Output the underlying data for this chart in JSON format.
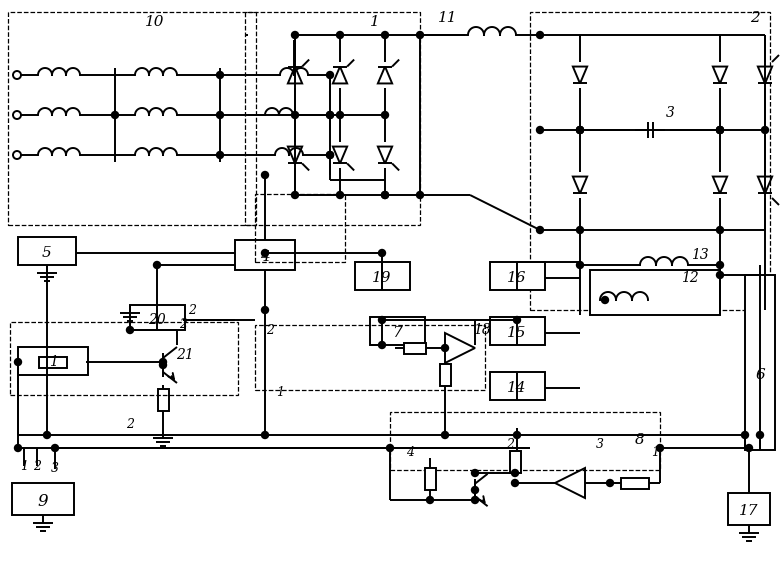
{
  "bg_color": "#ffffff",
  "line_color": "#000000",
  "lw": 1.4,
  "dlw": 0.9,
  "fig_width": 7.8,
  "fig_height": 5.7,
  "dpi": 100
}
